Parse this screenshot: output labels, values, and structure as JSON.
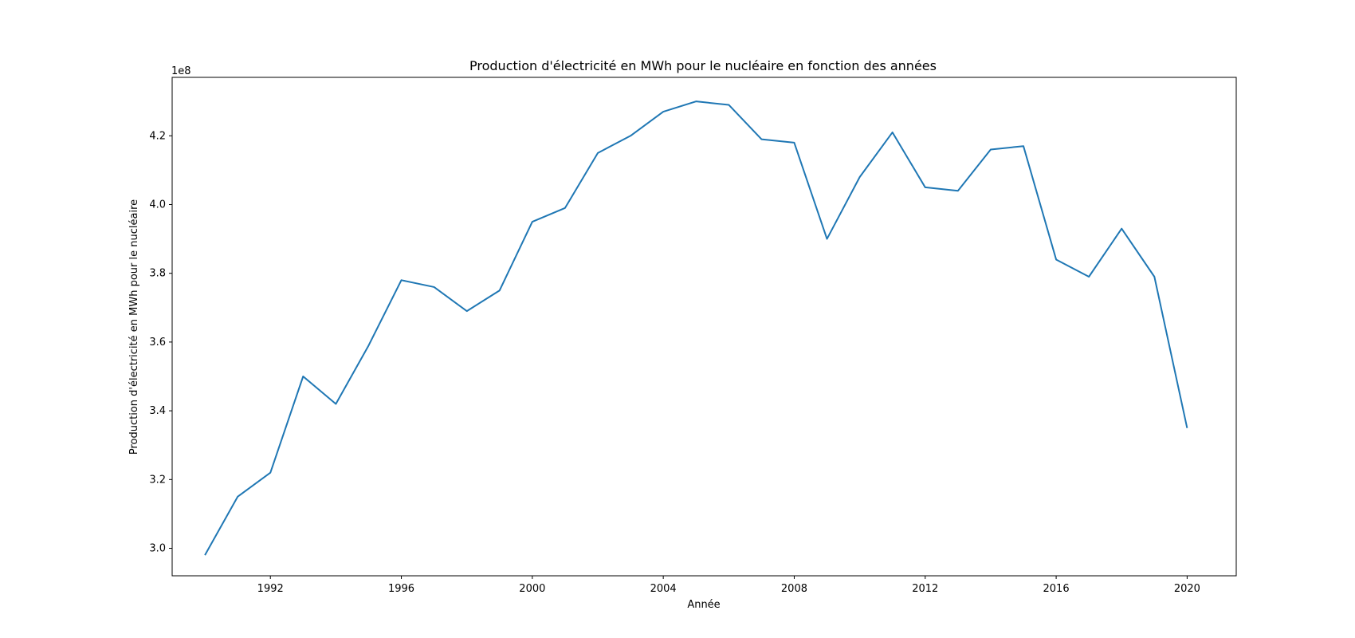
{
  "chart_data": {
    "type": "line",
    "title": "Production d'électricité en MWh pour le nucléaire en fonction des années",
    "xlabel": "Année",
    "ylabel": "Production d'électricité en MWh pour le nucléaire",
    "y_offset_label": "1e8",
    "y_multiplier": 100000000,
    "xlim": [
      1989,
      2021.5
    ],
    "ylim": [
      2.92,
      4.37
    ],
    "x_ticks": [
      1992,
      1996,
      2000,
      2004,
      2008,
      2012,
      2016,
      2020
    ],
    "y_ticks": [
      3.0,
      3.2,
      3.4,
      3.6,
      3.8,
      4.0,
      4.2
    ],
    "line_color": "#1f77b4",
    "grid": false,
    "series": [
      {
        "x": [
          1990,
          1991,
          1992,
          1993,
          1994,
          1995,
          1996,
          1997,
          1998,
          1999,
          2000,
          2001,
          2002,
          2003,
          2004,
          2005,
          2006,
          2007,
          2008,
          2009,
          2010,
          2011,
          2012,
          2013,
          2014,
          2015,
          2016,
          2017,
          2018,
          2019,
          2020
        ],
        "y": [
          2.98,
          3.15,
          3.22,
          3.5,
          3.42,
          3.59,
          3.78,
          3.76,
          3.69,
          3.75,
          3.95,
          3.99,
          4.15,
          4.2,
          4.27,
          4.3,
          4.29,
          4.19,
          4.18,
          3.9,
          4.08,
          4.21,
          4.05,
          4.04,
          4.16,
          4.17,
          3.84,
          3.79,
          3.93,
          3.79,
          3.35
        ]
      }
    ]
  }
}
